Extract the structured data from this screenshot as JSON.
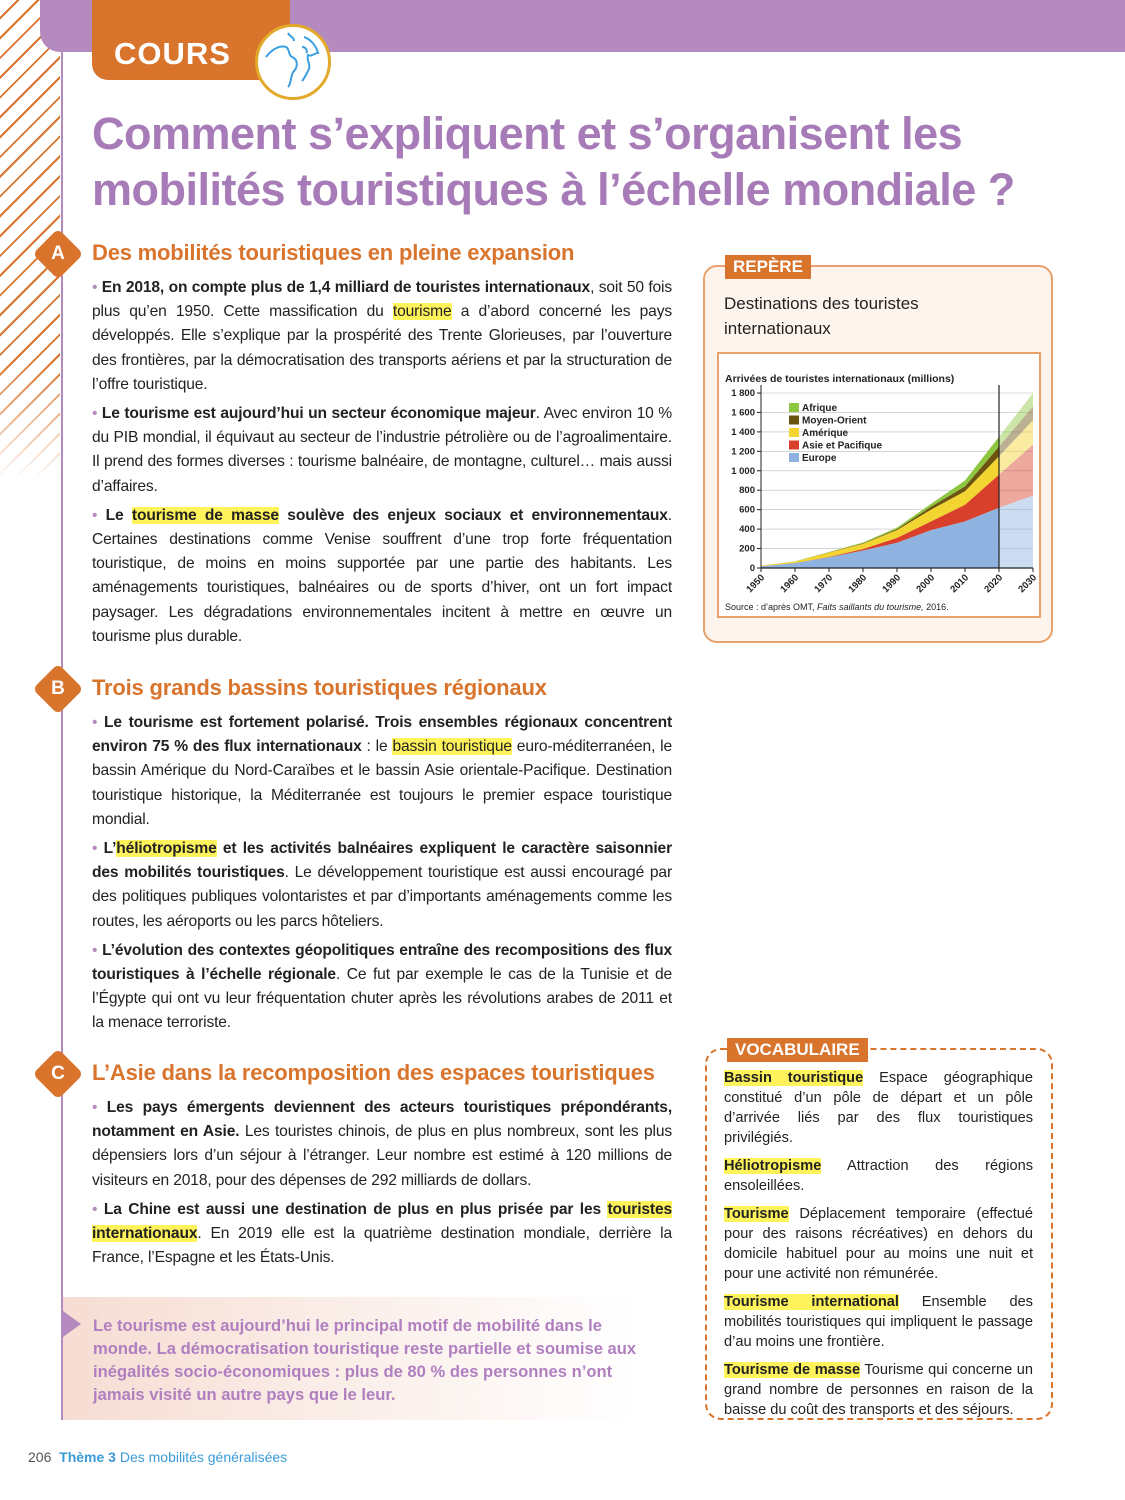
{
  "header": {
    "tag": "COURS",
    "icon": "globe-icon",
    "title_line1": "Comment s’expliquent et s’organisent les",
    "title_line2": "mobilités touristiques à l’échelle mondiale ?"
  },
  "sections": [
    {
      "letter": "A",
      "title": "Des mobilités touristiques en pleine expansion",
      "paragraphs": [
        [
          {
            "t": "En 2018, on compte plus de 1,4 milliard de touristes internationaux",
            "b": 1
          },
          {
            "t": ", soit 50 fois plus qu’en 1950. Cette massification du "
          },
          {
            "t": "tourisme",
            "h": 1
          },
          {
            "t": " a d’abord concerné les pays développés. Elle s’explique par la prospérité des Trente Glorieuses, par l’ouverture des frontières, par la démocratisation des transports aériens et par la structuration de l’offre touristique."
          }
        ],
        [
          {
            "t": "Le tourisme est aujourd’hui un secteur économique majeur",
            "b": 1
          },
          {
            "t": ". Avec environ 10 % du PIB mondial, il équivaut au secteur de l’industrie pétrolière ou de l’agroalimentaire. Il prend des formes diverses : tourisme balnéaire, de montagne, culturel… mais aussi d’affaires."
          }
        ],
        [
          {
            "t": "Le ",
            "b": 1
          },
          {
            "t": "tourisme de masse",
            "b": 1,
            "h": 1
          },
          {
            "t": " soulève des enjeux sociaux et environnementaux",
            "b": 1
          },
          {
            "t": ". Certaines destinations comme Venise souffrent d’une trop forte fréquentation touristique, de moins en moins supportée par une partie des habitants. Les aménagements touristiques, balnéaires ou de sports d’hiver, ont un fort impact paysager. Les dégradations environnementales incitent à mettre en œuvre un tourisme plus durable."
          }
        ]
      ]
    },
    {
      "letter": "B",
      "title": "Trois grands bassins touristiques régionaux",
      "paragraphs": [
        [
          {
            "t": "Le tourisme est fortement polarisé. Trois ensembles régionaux concentrent environ 75 % des flux internationaux",
            "b": 1
          },
          {
            "t": " : le "
          },
          {
            "t": "bassin touristique",
            "h": 1
          },
          {
            "t": " euro-méditerranéen, le bassin Amérique du Nord-Caraïbes et le bassin Asie orientale-Pacifique. Destination touristique historique, la Méditerranée est toujours le premier espace touristique mondial."
          }
        ],
        [
          {
            "t": "L’",
            "b": 1
          },
          {
            "t": "héliotropisme",
            "b": 1,
            "h": 1
          },
          {
            "t": " et les activités balnéaires expliquent le caractère saisonnier des mobilités touristiques",
            "b": 1
          },
          {
            "t": ". Le développement touristique est aussi encouragé par des politiques publiques volontaristes et par d’importants aménagements comme les routes, les aéroports ou les parcs hôteliers."
          }
        ],
        [
          {
            "t": "L’évolution des contextes géopolitiques entraîne des recompositions des flux touristiques à l’échelle régionale",
            "b": 1
          },
          {
            "t": ". Ce fut par exemple le cas de la Tunisie et de l’Égypte qui ont vu leur fréquentation chuter après les révolutions arabes de 2011 et la menace terroriste."
          }
        ]
      ]
    },
    {
      "letter": "C",
      "title": "L’Asie dans la recomposition des espaces touristiques",
      "paragraphs": [
        [
          {
            "t": "Les pays émergents deviennent des acteurs touristiques prépondérants, notamment en Asie.",
            "b": 1
          },
          {
            "t": " Les touristes chinois, de plus en plus nombreux, sont les plus dépensiers lors d’un séjour à l’étranger. Leur nombre est estimé à 120 millions de visiteurs en 2018, pour des dépenses de 292 milliards de dollars."
          }
        ],
        [
          {
            "t": "La Chine est aussi une destination de plus en plus prisée par les ",
            "b": 1
          },
          {
            "t": "touristes internationaux",
            "b": 1,
            "h": 1
          },
          {
            "t": ". En 2019 elle est la quatrième destination mondiale, derrière la France, l’Espagne et les États-Unis."
          }
        ]
      ]
    }
  ],
  "conclusion": "Le tourisme est aujourd’hui le principal motif de mobilité dans le monde. La démocratisation touristique reste partielle et soumise aux inégalités socio-économiques : plus de 80 % des personnes n’ont jamais visité un autre pays que le leur.",
  "repere": {
    "tag": "REPÈRE",
    "title": "Destinations des touristes internationaux",
    "source_prefix": "Source : d’après OMT, ",
    "source_title": "Faits saillants du tourisme,",
    "source_year": " 2016."
  },
  "chart_data": {
    "type": "area",
    "stacked": true,
    "title": "Arrivées de touristes internationaux (millions)",
    "x": [
      1950,
      1960,
      1970,
      1980,
      1990,
      2000,
      2010,
      2020,
      2030
    ],
    "x_ticks": [
      "1950",
      "1960",
      "1970",
      "1980",
      "1990",
      "2000",
      "2010",
      "2020",
      "2030"
    ],
    "y_ticks": [
      "0",
      "200",
      "400",
      "600",
      "800",
      "1 000",
      "1 200",
      "1 400",
      "1 600",
      "1 800"
    ],
    "ylim": [
      0,
      1800
    ],
    "projection_from": 2020,
    "grid": true,
    "legend": "top-left",
    "series": [
      {
        "name": "Europe",
        "color": "#8fb3e0",
        "values": [
          17,
          50,
          110,
          180,
          260,
          390,
          480,
          620,
          745
        ]
      },
      {
        "name": "Asie et Pacifique",
        "color": "#d9402b",
        "values": [
          1,
          2,
          5,
          15,
          50,
          90,
          170,
          340,
          525
        ]
      },
      {
        "name": "Amérique",
        "color": "#f2d531",
        "values": [
          7,
          13,
          45,
          55,
          80,
          120,
          140,
          190,
          250
        ]
      },
      {
        "name": "Moyen-Orient",
        "color": "#6b5310",
        "values": [
          0,
          1,
          2,
          5,
          10,
          30,
          50,
          100,
          140
        ]
      },
      {
        "name": "Afrique",
        "color": "#8dc63f",
        "values": [
          0,
          2,
          3,
          7,
          15,
          30,
          60,
          100,
          140
        ]
      }
    ]
  },
  "vocabulary": {
    "tag": "VOCABULAIRE",
    "items": [
      {
        "term": "Bassin touristique",
        "def": " Espace géographique constitué d’un pôle de départ et un pôle d’arrivée liés par des flux touristiques privilégiés."
      },
      {
        "term": "Héliotropisme",
        "def": " Attraction des régions ensoleillées."
      },
      {
        "term": "Tourisme",
        "def": " Déplacement temporaire (effectué pour des raisons récréatives) en dehors du domicile habituel pour au moins une nuit et pour une activité non rémunérée."
      },
      {
        "term": "Tourisme international",
        "def": " Ensemble des mobilités touristiques qui impliquent le passage d’au moins une frontière."
      },
      {
        "term": "Tourisme de masse",
        "def": " Tourisme qui concerne un grand nombre de personnes en raison de la baisse du coût des transports et des séjours."
      }
    ]
  },
  "footer": {
    "page": "206",
    "theme": "Thème 3",
    "subtitle": "Des mobilités généralisées"
  }
}
